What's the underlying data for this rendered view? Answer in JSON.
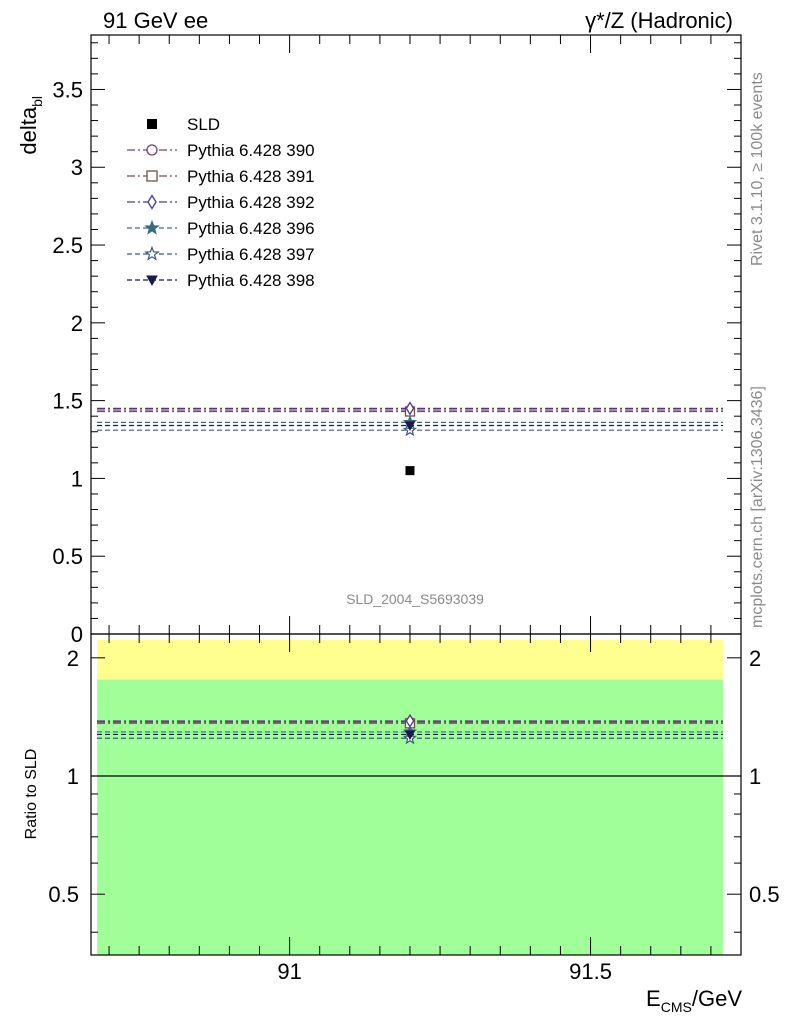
{
  "header": {
    "left": "91 GeV ee",
    "right": "γ*/Z (Hadronic)"
  },
  "side": {
    "rivet": "Rivet 3.1.10, ≥ 100k events",
    "mcplots": "mcplots.cern.ch [arXiv:1306.3436]"
  },
  "watermark": "SLD_2004_S5693039",
  "chart_data": [
    {
      "type": "scatter",
      "panel": "main",
      "ylabel_base": "delta",
      "ylabel_sub": "bl",
      "xlim": [
        90.67,
        91.75
      ],
      "ylim": [
        0,
        3.85
      ],
      "yticks": [
        0,
        0.5,
        1,
        1.5,
        2,
        2.5,
        3,
        3.5
      ],
      "ytick_labels": [
        "0",
        "0.5",
        "1",
        "1.5",
        "2",
        "2.5",
        "3",
        "3.5"
      ],
      "legend_position": "top-left",
      "data": {
        "name": "SLD",
        "x": 91.2,
        "y": 1.05,
        "color": "#000000"
      },
      "series": [
        {
          "name": "Pythia 6.428 390",
          "x": 91.2,
          "y": 1.44,
          "color": "#7a3d7a",
          "marker": "circle",
          "dash": "dashdot"
        },
        {
          "name": "Pythia 6.428 391",
          "x": 91.2,
          "y": 1.43,
          "color": "#7a4a4a",
          "marker": "square",
          "dash": "dashdot"
        },
        {
          "name": "Pythia 6.428 392",
          "x": 91.2,
          "y": 1.45,
          "color": "#4b3a8c",
          "marker": "diamond",
          "dash": "dashdot"
        },
        {
          "name": "Pythia 6.428 396",
          "x": 91.2,
          "y": 1.36,
          "color": "#3a6a80",
          "marker": "star-filled",
          "dash": "dashed"
        },
        {
          "name": "Pythia 6.428 397",
          "x": 91.2,
          "y": 1.31,
          "color": "#3a5a80",
          "marker": "star-open",
          "dash": "dashed"
        },
        {
          "name": "Pythia 6.428 398",
          "x": 91.2,
          "y": 1.34,
          "color": "#1a1a4a",
          "marker": "triangle-down",
          "dash": "dashed"
        }
      ]
    },
    {
      "type": "scatter",
      "panel": "ratio",
      "ylabel": "Ratio to SLD",
      "xlabel_base": "E",
      "xlabel_sub": "CMS",
      "xlabel_rest": "/GeV",
      "xlim": [
        90.67,
        91.75
      ],
      "ylim": [
        0.35,
        2.3
      ],
      "yticks": [
        0.5,
        1,
        2
      ],
      "ytick_labels": [
        "0.5",
        "1",
        "2"
      ],
      "xticks": [
        91,
        91.5
      ],
      "xtick_labels": [
        "91",
        "91.5"
      ],
      "bands": [
        {
          "name": "total",
          "lo": 0.35,
          "hi": 2.22,
          "color": "#ffff90"
        },
        {
          "name": "stat",
          "lo": 0.35,
          "hi": 1.76,
          "color": "#a0ff98"
        }
      ],
      "band_x": [
        90.68,
        91.72
      ],
      "ratios": [
        1.372,
        1.362,
        1.381,
        1.295,
        1.248,
        1.276
      ]
    }
  ]
}
